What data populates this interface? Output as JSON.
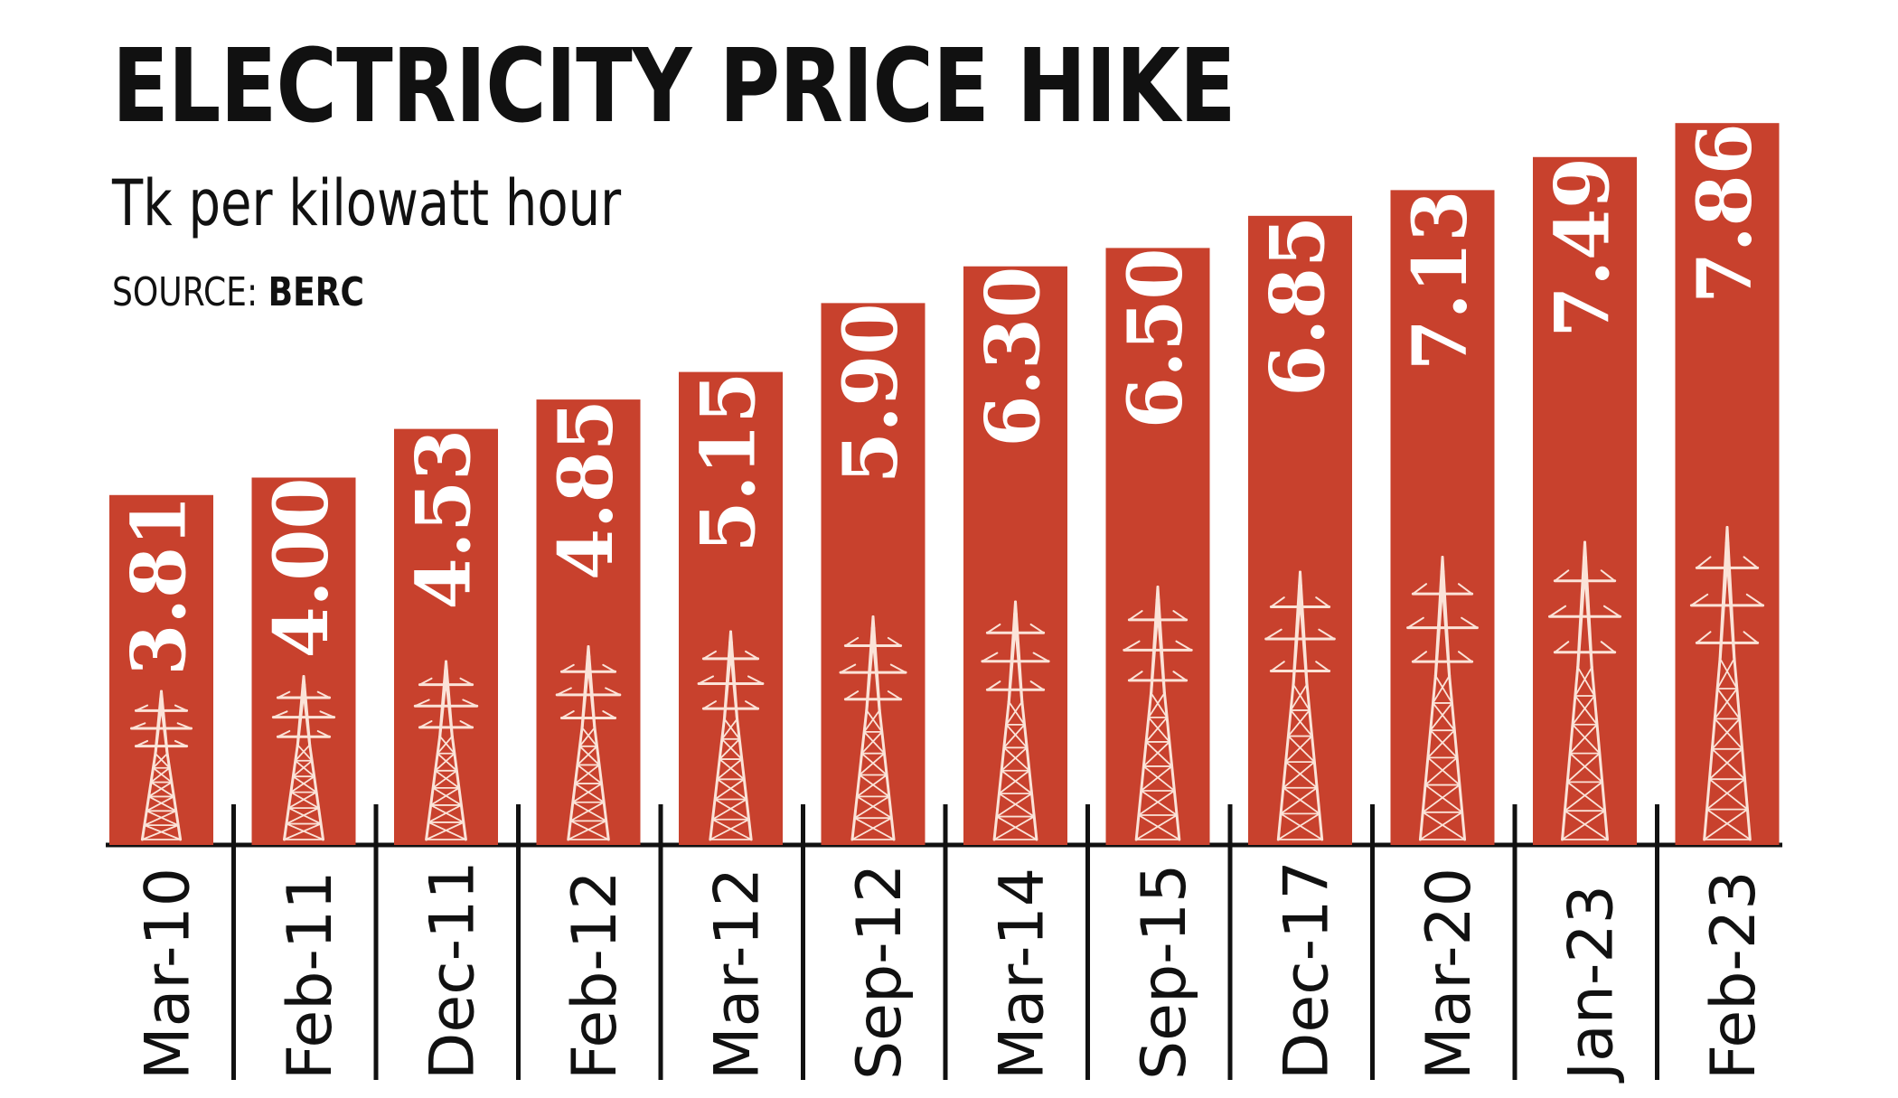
{
  "colors": {
    "bar": "#c8412d",
    "text": "#111111",
    "label": "#ffffff",
    "pylon": "#fbe3d8"
  },
  "icons": {
    "bar_decoration": "pylon-icon"
  },
  "chart_data": {
    "type": "bar",
    "title": "ELECTRICITY PRICE HIKE",
    "subtitle": "Tk per kilowatt hour",
    "source_prefix": "SOURCE:",
    "source": "BERC",
    "categories": [
      "Mar-10",
      "Feb-11",
      "Dec-11",
      "Feb-12",
      "Mar-12",
      "Sep-12",
      "Mar-14",
      "Sep-15",
      "Dec-17",
      "Mar-20",
      "Jan-23",
      "Feb-23"
    ],
    "values": [
      3.81,
      4.0,
      4.53,
      4.85,
      5.15,
      5.9,
      6.3,
      6.5,
      6.85,
      7.13,
      7.49,
      7.86
    ],
    "value_labels": [
      "3.81",
      "4.00",
      "4.53",
      "4.85",
      "5.15",
      "5.90",
      "6.30",
      "6.50",
      "6.85",
      "7.13",
      "7.49",
      "7.86"
    ],
    "ylim": [
      0,
      9.2
    ],
    "grid": false,
    "legend": "none"
  }
}
